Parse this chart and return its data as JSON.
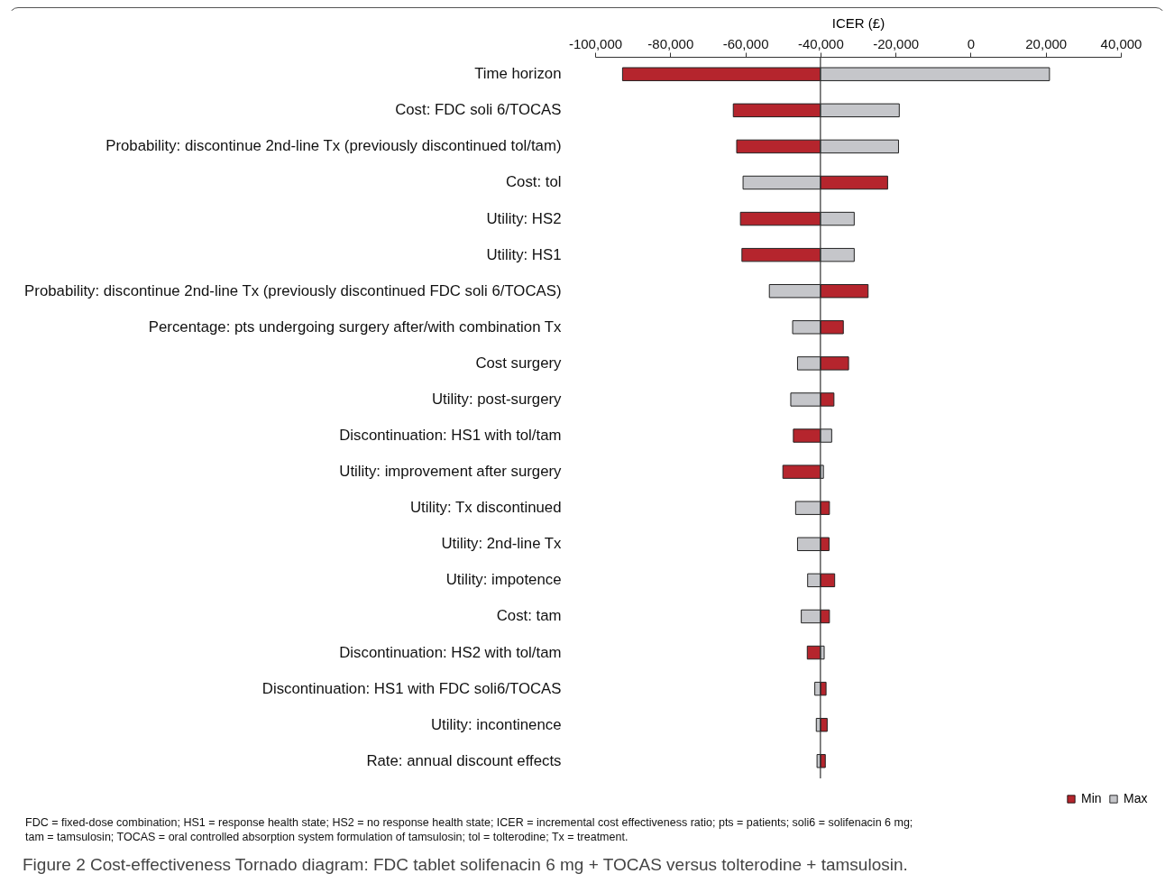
{
  "chart_data": {
    "type": "bar",
    "orientation": "horizontal",
    "xlabel": "ICER (£)",
    "categories": [
      "Time horizon",
      "Cost: FDC soli 6/TOCAS",
      "Probability: discontinue 2nd-line Tx (previously discontinued tol/tam)",
      "Cost: tol",
      "Utility: HS2",
      "Utility: HS1",
      "Probability: discontinue 2nd-line Tx (previously discontinued FDC soli 6/TOCAS)",
      "Percentage: pts undergoing surgery after/with combination Tx",
      "Cost surgery",
      "Utility: post-surgery",
      "Discontinuation: HS1 with tol/tam",
      "Utility: improvement after surgery",
      "Utility: Tx discontinued",
      "Utility: 2nd-line Tx",
      "Utility: impotence",
      "Cost: tam",
      "Discontinuation: HS2 with tol/tam",
      "Discontinuation: HS1 with FDC soli6/TOCAS",
      "Utility: incontinence",
      "Rate: annual discount effects"
    ],
    "ref_lines": [
      {
        "axis": "x",
        "value": -40000
      }
    ],
    "series": [
      {
        "name": "Min",
        "color": "#b5252d",
        "base": [
          -40000,
          -40000,
          -40000,
          -40000,
          -40000,
          -40000,
          -40000,
          -40000,
          -40000,
          -40000,
          -40000,
          -40000,
          -40000,
          -40000,
          -40000,
          -40000,
          -40000,
          -40000,
          -40000,
          -40000
        ],
        "values": [
          -52700,
          -23200,
          -22300,
          17900,
          -21300,
          -20900,
          12700,
          6100,
          7500,
          3600,
          -7200,
          -10000,
          2400,
          2300,
          3800,
          2400,
          -3500,
          1500,
          1800,
          1300
        ]
      },
      {
        "name": "Max",
        "color": "#c5c6ca",
        "base": [
          -40000,
          -40000,
          -40000,
          -40000,
          -40000,
          -40000,
          -40000,
          -40000,
          -40000,
          -40000,
          -40000,
          -40000,
          -40000,
          -40000,
          -40000,
          -40000,
          -40000,
          -40000,
          -40000,
          -40000
        ],
        "values": [
          61000,
          21000,
          20800,
          -20600,
          9000,
          9000,
          -13600,
          -7400,
          -6100,
          -7900,
          3000,
          800,
          -6600,
          -6100,
          -3400,
          -5100,
          1000,
          -1500,
          -1100,
          -900
        ]
      }
    ],
    "xlim": [
      -100000,
      40000
    ],
    "xticks": [
      {
        "value": -100000,
        "label": "-100,000"
      },
      {
        "value": -80000,
        "label": "-80,000"
      },
      {
        "value": -60000,
        "label": "-60,000"
      },
      {
        "value": -40000,
        "label": "-40,000"
      },
      {
        "value": -20000,
        "label": "-20,000"
      },
      0,
      {
        "value": 20000,
        "label": "20,000"
      },
      {
        "value": 40000,
        "label": "40,000"
      }
    ],
    "legend": "bottom right",
    "annotations": [
      "FDC = fixed-dose combination; HS1 = response health state; HS2 = no response health state; ICER = incremental cost effectiveness ratio; pts = patients; soli6 = solifenacin 6 mg; tam = tamsulosin; TOCAS = oral controlled absorption system formulation of tamsulosin; tol = tolterodine; Tx = treatment.",
      "Figure 2 Cost-effectiveness Tornado diagram: FDC tablet solifenacin 6 mg + TOCAS versus tolterodine + tamsulosin."
    ]
  }
}
